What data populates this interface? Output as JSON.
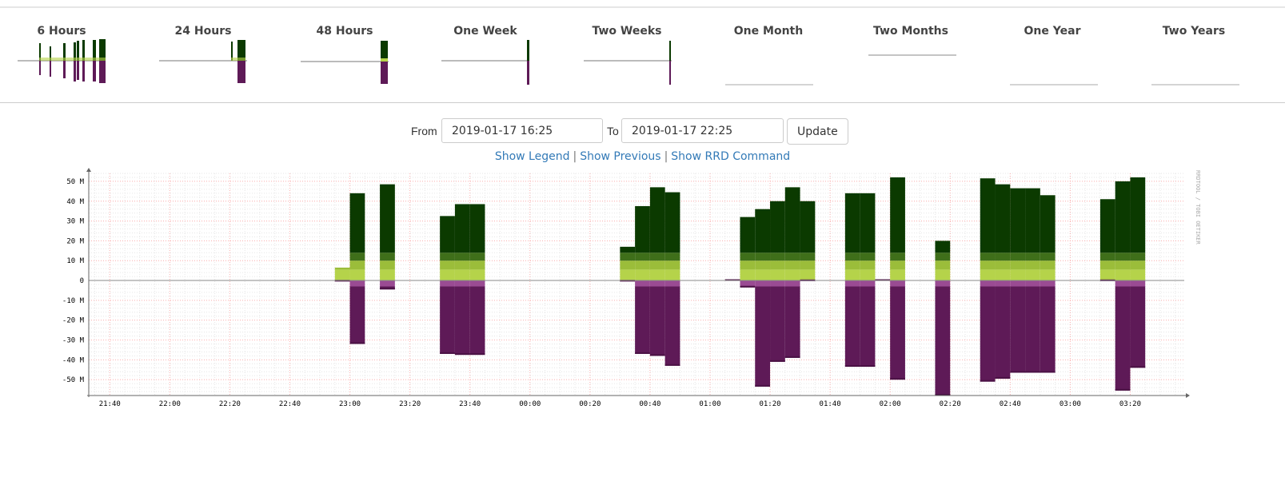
{
  "periods": [
    {
      "label": "6 Hours"
    },
    {
      "label": "24 Hours"
    },
    {
      "label": "48 Hours"
    },
    {
      "label": "One Week"
    },
    {
      "label": "Two Weeks"
    },
    {
      "label": "One Month"
    },
    {
      "label": "Two Months"
    },
    {
      "label": "One Year"
    },
    {
      "label": "Two Years"
    }
  ],
  "range": {
    "from_label": "From",
    "from_value": "2019-01-17 16:25",
    "to_label": "To",
    "to_value": "2019-01-17 22:25",
    "update_label": "Update"
  },
  "links": {
    "show_legend": "Show Legend",
    "show_previous": "Show Previous",
    "show_rrd": "Show RRD Command",
    "separator": "|"
  },
  "colors": {
    "in_dark": "#0b3a00",
    "in_mid": "#3f6f1a",
    "in_light": "#9bbd3a",
    "in_lightest": "#b5d34a",
    "out_dark": "#4a1144",
    "out_main": "#5e1a57",
    "out_light": "#9a4b93",
    "grid_major": "#ffb0b0",
    "grid_minor": "#e6e6e6"
  },
  "chart_data": {
    "type": "bar",
    "watermark": "RRDTOOL / TOBI OETIKER",
    "ylim": [
      -58,
      54
    ],
    "yticks": [
      {
        "v": 50,
        "label": "50 M"
      },
      {
        "v": 40,
        "label": "40 M"
      },
      {
        "v": 30,
        "label": "30 M"
      },
      {
        "v": 20,
        "label": "20 M"
      },
      {
        "v": 10,
        "label": "10 M"
      },
      {
        "v": 0,
        "label": "0"
      },
      {
        "v": -10,
        "label": "-10 M"
      },
      {
        "v": -20,
        "label": "-20 M"
      },
      {
        "v": -30,
        "label": "-30 M"
      },
      {
        "v": -40,
        "label": "-40 M"
      },
      {
        "v": -50,
        "label": "-50 M"
      }
    ],
    "xlim_minutes": [
      1293,
      1658
    ],
    "xticks": [
      {
        "m": 1300,
        "label": "21:40"
      },
      {
        "m": 1320,
        "label": "22:00"
      },
      {
        "m": 1340,
        "label": "22:20"
      },
      {
        "m": 1360,
        "label": "22:40"
      },
      {
        "m": 1380,
        "label": "23:00"
      },
      {
        "m": 1400,
        "label": "23:20"
      },
      {
        "m": 1420,
        "label": "23:40"
      },
      {
        "m": 1440,
        "label": "00:00"
      },
      {
        "m": 1460,
        "label": "00:20"
      },
      {
        "m": 1480,
        "label": "00:40"
      },
      {
        "m": 1500,
        "label": "01:00"
      },
      {
        "m": 1520,
        "label": "01:20"
      },
      {
        "m": 1540,
        "label": "01:40"
      },
      {
        "m": 1560,
        "label": "02:00"
      },
      {
        "m": 1580,
        "label": "02:20"
      },
      {
        "m": 1600,
        "label": "02:40"
      },
      {
        "m": 1620,
        "label": "03:00"
      },
      {
        "m": 1640,
        "label": "03:20"
      }
    ],
    "bars": [
      {
        "t0": 1375,
        "t1": 1380,
        "in": 6.5,
        "out": -0.5
      },
      {
        "t0": 1380,
        "t1": 1385,
        "in": 44,
        "out": -32
      },
      {
        "t0": 1390,
        "t1": 1395,
        "in": 48.5,
        "out": -4.5
      },
      {
        "t0": 1410,
        "t1": 1415,
        "in": 32.5,
        "out": -37
      },
      {
        "t0": 1415,
        "t1": 1420,
        "in": 38.5,
        "out": -37.5
      },
      {
        "t0": 1420,
        "t1": 1425,
        "in": 38.5,
        "out": -37.5
      },
      {
        "t0": 1470,
        "t1": 1475,
        "in": 17,
        "out": -0.5
      },
      {
        "t0": 1475,
        "t1": 1480,
        "in": 37.5,
        "out": -37
      },
      {
        "t0": 1480,
        "t1": 1485,
        "in": 47,
        "out": -38
      },
      {
        "t0": 1485,
        "t1": 1490,
        "in": 44.5,
        "out": -43
      },
      {
        "t0": 1505,
        "t1": 1510,
        "in": 0.5,
        "out": -0.2
      },
      {
        "t0": 1510,
        "t1": 1515,
        "in": 32,
        "out": -3.5
      },
      {
        "t0": 1515,
        "t1": 1520,
        "in": 36,
        "out": -53.5
      },
      {
        "t0": 1520,
        "t1": 1525,
        "in": 40,
        "out": -41
      },
      {
        "t0": 1525,
        "t1": 1530,
        "in": 47,
        "out": -39
      },
      {
        "t0": 1530,
        "t1": 1535,
        "in": 40,
        "out": -0.3
      },
      {
        "t0": 1545,
        "t1": 1550,
        "in": 44,
        "out": -43.5
      },
      {
        "t0": 1550,
        "t1": 1555,
        "in": 44,
        "out": -43.5
      },
      {
        "t0": 1555,
        "t1": 1560,
        "in": 0.3,
        "out": -0.2
      },
      {
        "t0": 1560,
        "t1": 1565,
        "in": 52,
        "out": -50
      },
      {
        "t0": 1575,
        "t1": 1580,
        "in": 20,
        "out": -58
      },
      {
        "t0": 1590,
        "t1": 1595,
        "in": 51.5,
        "out": -51
      },
      {
        "t0": 1595,
        "t1": 1600,
        "in": 48.5,
        "out": -49.5
      },
      {
        "t0": 1600,
        "t1": 1605,
        "in": 46.5,
        "out": -46.5
      },
      {
        "t0": 1605,
        "t1": 1610,
        "in": 46.5,
        "out": -46.5
      },
      {
        "t0": 1610,
        "t1": 1615,
        "in": 43,
        "out": -46.5
      },
      {
        "t0": 1630,
        "t1": 1635,
        "in": 41,
        "out": -0.3
      },
      {
        "t0": 1635,
        "t1": 1640,
        "in": 50,
        "out": -55.5
      },
      {
        "t0": 1640,
        "t1": 1645,
        "in": 52,
        "out": -44
      }
    ]
  }
}
